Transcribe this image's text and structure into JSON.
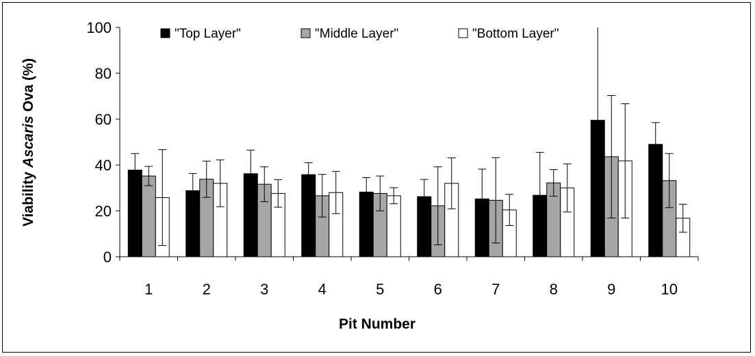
{
  "chart_data": {
    "type": "bar",
    "title": "",
    "xlabel": "Pit Number",
    "ylabel": {
      "pre": "Viability ",
      "italic": "Ascaris",
      "post": " Ova (%)"
    },
    "ylim": [
      0,
      100
    ],
    "yticks": [
      0,
      20,
      40,
      60,
      80,
      100
    ],
    "categories": [
      "1",
      "2",
      "3",
      "4",
      "5",
      "6",
      "7",
      "8",
      "9",
      "10"
    ],
    "legend_position": "top",
    "grid": false,
    "series": [
      {
        "name": "\"Top Layer\"",
        "color": "#000000",
        "values": [
          37.8,
          28.8,
          36.2,
          35.8,
          28.2,
          26.2,
          25.2,
          26.8,
          59.5,
          49.0
        ],
        "errors": [
          7.2,
          7.5,
          10.3,
          5.2,
          6.3,
          7.5,
          13.0,
          18.7,
          41.5,
          9.5
        ]
      },
      {
        "name": "\"Middle Layer\"",
        "color": "#a6a6a6",
        "values": [
          35.2,
          33.8,
          31.6,
          26.6,
          27.6,
          22.2,
          24.6,
          32.2,
          43.6,
          33.2
        ],
        "errors": [
          4.2,
          7.9,
          7.6,
          9.3,
          7.6,
          17.0,
          18.6,
          5.8,
          26.7,
          11.8
        ]
      },
      {
        "name": "\"Bottom Layer\"",
        "color": "#ffffff",
        "values": [
          25.8,
          32.0,
          27.6,
          28.0,
          26.6,
          32.0,
          20.4,
          30.0,
          41.8,
          16.8
        ],
        "errors": [
          20.9,
          10.2,
          6.0,
          9.2,
          3.5,
          11.1,
          6.8,
          10.5,
          24.9,
          6.1
        ]
      }
    ]
  }
}
